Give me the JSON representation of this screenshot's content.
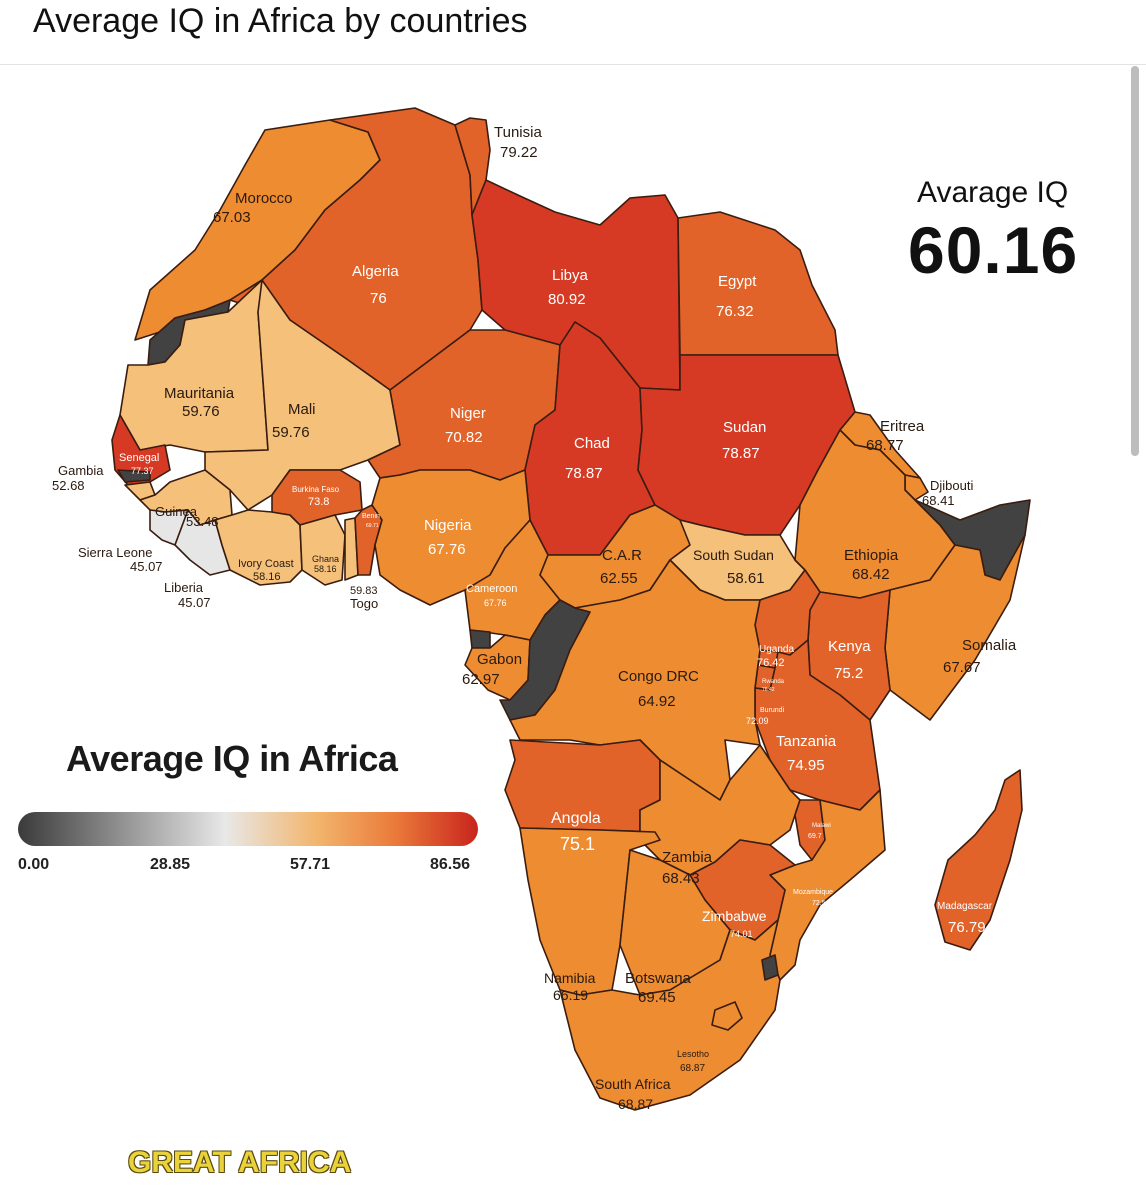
{
  "header": {
    "title": "Average IQ in Africa by countries"
  },
  "summary": {
    "label": "Avarage IQ",
    "value": "60.16"
  },
  "legend": {
    "title": "Average IQ in Africa",
    "ticks": [
      "0.00",
      "28.85",
      "57.71",
      "86.56"
    ]
  },
  "brand": "GREAT AFRICA",
  "colors": {
    "light": "#f4c07a",
    "mid": "#ee8c32",
    "orange": "#e2632a",
    "red": "#d63a24",
    "grey": "#424242"
  },
  "countries": {
    "tunisia": {
      "name": "Tunisia",
      "value": "79.22"
    },
    "morocco": {
      "name": "Morocco",
      "value": "67.03"
    },
    "algeria": {
      "name": "Algeria",
      "value": "76"
    },
    "libya": {
      "name": "Libya",
      "value": "80.92"
    },
    "egypt": {
      "name": "Egypt",
      "value": "76.32"
    },
    "mauritania": {
      "name": "Mauritania",
      "value": "59.76"
    },
    "mali": {
      "name": "Mali",
      "value": "59.76"
    },
    "niger": {
      "name": "Niger",
      "value": "70.82"
    },
    "chad": {
      "name": "Chad",
      "value": "78.87"
    },
    "sudan": {
      "name": "Sudan",
      "value": "78.87"
    },
    "eritrea": {
      "name": "Eritrea",
      "value": "68.77"
    },
    "djibouti": {
      "name": "Djibouti",
      "value": "68.41"
    },
    "senegal": {
      "name": "Senegal",
      "value": "77.37"
    },
    "gambia": {
      "name": "Gambia",
      "value": "52.68"
    },
    "guinea": {
      "name": "Guinea",
      "value": "53.48"
    },
    "burkina_faso": {
      "name": "Burkina Faso",
      "value": "73.8"
    },
    "benin": {
      "name": "Benin",
      "value": "69.71"
    },
    "nigeria": {
      "name": "Nigeria",
      "value": "67.76"
    },
    "sierra_leone": {
      "name": "Sierra Leone",
      "value": "45.07"
    },
    "liberia": {
      "name": "Liberia",
      "value": "45.07"
    },
    "ivory_coast": {
      "name": "Ivory Coast",
      "value": "58.16"
    },
    "ghana": {
      "name": "Ghana",
      "value": "58.16"
    },
    "togo": {
      "name": "Togo",
      "value": "59.83"
    },
    "car": {
      "name": "C.A.R",
      "value": "62.55"
    },
    "south_sudan": {
      "name": "South Sudan",
      "value": "58.61"
    },
    "ethiopia": {
      "name": "Ethiopia",
      "value": "68.42"
    },
    "cameroon": {
      "name": "Cameroon",
      "value": "67.76"
    },
    "somalia": {
      "name": "Somalia",
      "value": "67.67"
    },
    "gabon": {
      "name": "Gabon",
      "value": "62.97"
    },
    "congo_drc": {
      "name": "Congo DRC",
      "value": "64.92"
    },
    "uganda": {
      "name": "Uganda",
      "value": "76.42"
    },
    "kenya": {
      "name": "Kenya",
      "value": "75.2"
    },
    "rwanda": {
      "name": "Rwanda",
      "value": "76.42"
    },
    "burundi": {
      "name": "Burundi",
      "value": "72.09"
    },
    "tanzania": {
      "name": "Tanzania",
      "value": "74.95"
    },
    "angola": {
      "name": "Angola",
      "value": "75.1"
    },
    "zambia": {
      "name": "Zambia",
      "value": "68.43"
    },
    "malawi": {
      "name": "Malawi",
      "value": "69.7"
    },
    "mozambique": {
      "name": "Mozambique",
      "value": "72.5"
    },
    "madagascar": {
      "name": "Madagascar",
      "value": "76.79"
    },
    "zimbabwe": {
      "name": "Zimbabwe",
      "value": "74.01"
    },
    "namibia": {
      "name": "Namibia",
      "value": "66.19"
    },
    "botswana": {
      "name": "Botswana",
      "value": "69.45"
    },
    "lesotho": {
      "name": "Lesotho",
      "value": "68.87"
    },
    "south_africa": {
      "name": "South Africa",
      "value": "68.87"
    }
  }
}
